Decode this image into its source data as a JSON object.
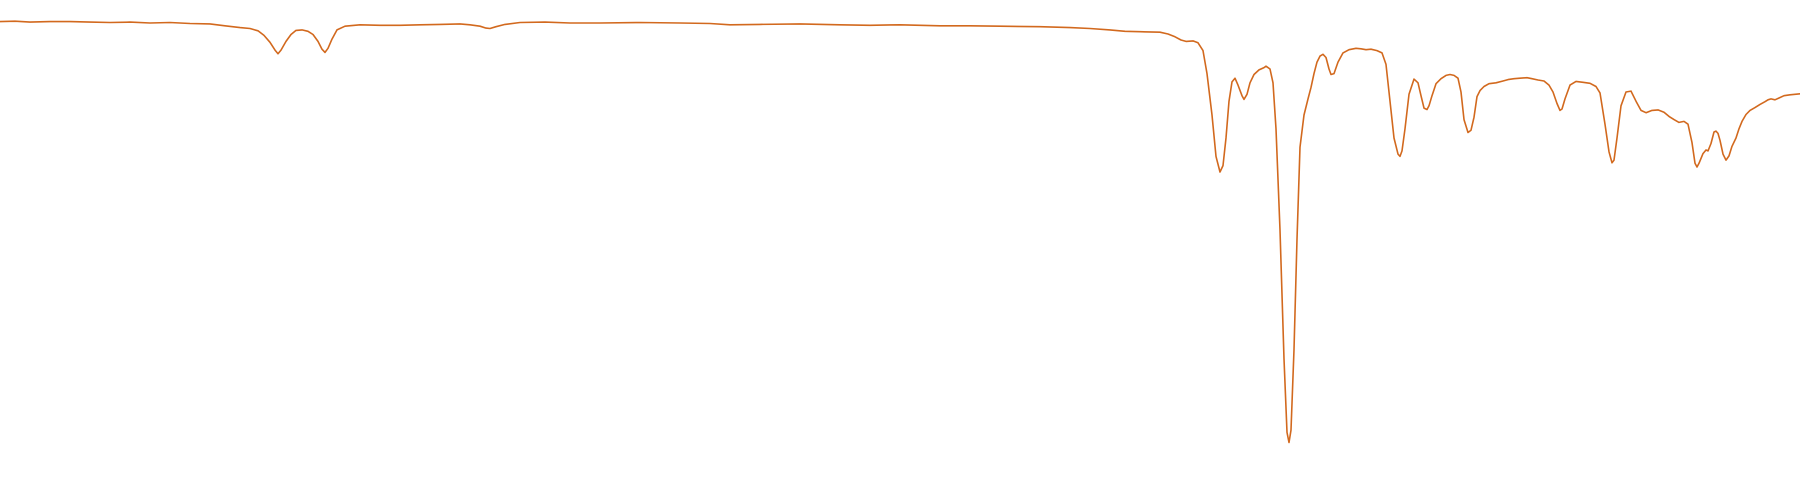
{
  "chart_data": {
    "type": "line",
    "title": "",
    "xlabel": "",
    "ylabel": "",
    "grid": false,
    "legend": "none",
    "xlim": [
      0,
      1800
    ],
    "ylim": [
      0,
      100
    ],
    "colors": {
      "line": "#d2691e",
      "background": "#ffffff"
    },
    "series": [
      {
        "values": [
          [
            0,
            95.3
          ],
          [
            15,
            95.4
          ],
          [
            30,
            95.2
          ],
          [
            50,
            95.3
          ],
          [
            70,
            95.3
          ],
          [
            90,
            95.2
          ],
          [
            110,
            95.1
          ],
          [
            130,
            95.2
          ],
          [
            150,
            95.0
          ],
          [
            170,
            95.1
          ],
          [
            190,
            94.9
          ],
          [
            210,
            94.8
          ],
          [
            225,
            94.4
          ],
          [
            240,
            94.0
          ],
          [
            250,
            93.8
          ],
          [
            258,
            93.3
          ],
          [
            264,
            92.3
          ],
          [
            270,
            90.8
          ],
          [
            275,
            89.1
          ],
          [
            278,
            88.3
          ],
          [
            281,
            89.1
          ],
          [
            286,
            91.0
          ],
          [
            291,
            92.5
          ],
          [
            296,
            93.4
          ],
          [
            302,
            93.5
          ],
          [
            308,
            93.2
          ],
          [
            313,
            92.5
          ],
          [
            318,
            91.0
          ],
          [
            322,
            89.3
          ],
          [
            325,
            88.6
          ],
          [
            328,
            89.5
          ],
          [
            332,
            91.5
          ],
          [
            337,
            93.5
          ],
          [
            345,
            94.3
          ],
          [
            360,
            94.6
          ],
          [
            380,
            94.5
          ],
          [
            400,
            94.5
          ],
          [
            420,
            94.6
          ],
          [
            440,
            94.7
          ],
          [
            460,
            94.8
          ],
          [
            470,
            94.6
          ],
          [
            480,
            94.3
          ],
          [
            486,
            93.9
          ],
          [
            490,
            93.8
          ],
          [
            496,
            94.2
          ],
          [
            505,
            94.7
          ],
          [
            520,
            95.1
          ],
          [
            545,
            95.2
          ],
          [
            570,
            95.0
          ],
          [
            600,
            95.0
          ],
          [
            640,
            95.1
          ],
          [
            680,
            95.0
          ],
          [
            710,
            94.9
          ],
          [
            730,
            94.6
          ],
          [
            760,
            94.7
          ],
          [
            800,
            94.8
          ],
          [
            840,
            94.6
          ],
          [
            870,
            94.5
          ],
          [
            900,
            94.6
          ],
          [
            940,
            94.4
          ],
          [
            970,
            94.4
          ],
          [
            1000,
            94.3
          ],
          [
            1040,
            94.2
          ],
          [
            1070,
            94.0
          ],
          [
            1090,
            93.8
          ],
          [
            1110,
            93.5
          ],
          [
            1125,
            93.2
          ],
          [
            1140,
            93.1
          ],
          [
            1160,
            93.0
          ],
          [
            1168,
            92.6
          ],
          [
            1175,
            92.0
          ],
          [
            1181,
            91.3
          ],
          [
            1186,
            91.0
          ],
          [
            1193,
            91.1
          ],
          [
            1198,
            90.7
          ],
          [
            1203,
            89.0
          ],
          [
            1207,
            84.0
          ],
          [
            1212,
            75.0
          ],
          [
            1216,
            66.0
          ],
          [
            1220,
            62.6
          ],
          [
            1223,
            64.0
          ],
          [
            1226,
            70.0
          ],
          [
            1229,
            78.0
          ],
          [
            1232,
            82.2
          ],
          [
            1235,
            83.0
          ],
          [
            1238,
            81.5
          ],
          [
            1242,
            79.2
          ],
          [
            1244,
            78.4
          ],
          [
            1247,
            79.5
          ],
          [
            1250,
            82.0
          ],
          [
            1254,
            83.8
          ],
          [
            1259,
            84.8
          ],
          [
            1264,
            85.3
          ],
          [
            1266,
            85.6
          ],
          [
            1270,
            85.0
          ],
          [
            1273,
            82.0
          ],
          [
            1276,
            72.0
          ],
          [
            1280,
            50.0
          ],
          [
            1284,
            22.0
          ],
          [
            1287,
            6.0
          ],
          [
            1289,
            3.8
          ],
          [
            1291,
            6.5
          ],
          [
            1294,
            24.0
          ],
          [
            1297,
            48.0
          ],
          [
            1300,
            68.0
          ],
          [
            1304,
            75.0
          ],
          [
            1308,
            78.5
          ],
          [
            1311,
            81.0
          ],
          [
            1314,
            84.0
          ],
          [
            1317,
            86.5
          ],
          [
            1320,
            87.8
          ],
          [
            1323,
            88.2
          ],
          [
            1326,
            87.5
          ],
          [
            1329,
            85.0
          ],
          [
            1331,
            83.8
          ],
          [
            1334,
            84.0
          ],
          [
            1338,
            86.5
          ],
          [
            1343,
            88.5
          ],
          [
            1349,
            89.2
          ],
          [
            1356,
            89.5
          ],
          [
            1361,
            89.4
          ],
          [
            1366,
            89.2
          ],
          [
            1371,
            89.3
          ],
          [
            1377,
            89.0
          ],
          [
            1382,
            88.5
          ],
          [
            1386,
            86.0
          ],
          [
            1390,
            78.0
          ],
          [
            1394,
            70.0
          ],
          [
            1398,
            66.5
          ],
          [
            1400,
            66.0
          ],
          [
            1402,
            67.2
          ],
          [
            1405,
            72.0
          ],
          [
            1409,
            79.5
          ],
          [
            1414,
            82.8
          ],
          [
            1418,
            82.0
          ],
          [
            1421,
            79.2
          ],
          [
            1424,
            76.5
          ],
          [
            1427,
            76.2
          ],
          [
            1429,
            77.0
          ],
          [
            1432,
            79.2
          ],
          [
            1436,
            81.8
          ],
          [
            1441,
            82.9
          ],
          [
            1446,
            83.6
          ],
          [
            1450,
            83.8
          ],
          [
            1454,
            83.6
          ],
          [
            1458,
            83.0
          ],
          [
            1461,
            80.0
          ],
          [
            1464,
            74.0
          ],
          [
            1468,
            71.2
          ],
          [
            1471,
            71.7
          ],
          [
            1474,
            74.5
          ],
          [
            1477,
            79.0
          ],
          [
            1480,
            80.3
          ],
          [
            1484,
            81.2
          ],
          [
            1489,
            81.8
          ],
          [
            1496,
            82.0
          ],
          [
            1503,
            82.4
          ],
          [
            1508,
            82.7
          ],
          [
            1514,
            82.9
          ],
          [
            1520,
            83.0
          ],
          [
            1527,
            83.1
          ],
          [
            1532,
            82.9
          ],
          [
            1538,
            82.6
          ],
          [
            1544,
            82.4
          ],
          [
            1549,
            81.5
          ],
          [
            1553,
            80.0
          ],
          [
            1557,
            77.5
          ],
          [
            1560,
            76.0
          ],
          [
            1562,
            76.3
          ],
          [
            1565,
            78.5
          ],
          [
            1570,
            81.5
          ],
          [
            1576,
            82.3
          ],
          [
            1583,
            82.1
          ],
          [
            1590,
            81.9
          ],
          [
            1596,
            81.2
          ],
          [
            1600,
            79.8
          ],
          [
            1605,
            73.0
          ],
          [
            1609,
            67.0
          ],
          [
            1612,
            64.6
          ],
          [
            1614,
            65.2
          ],
          [
            1617,
            70.0
          ],
          [
            1621,
            77.0
          ],
          [
            1626,
            80.0
          ],
          [
            1631,
            80.2
          ],
          [
            1636,
            78.0
          ],
          [
            1641,
            76.0
          ],
          [
            1646,
            75.5
          ],
          [
            1652,
            76.0
          ],
          [
            1658,
            76.1
          ],
          [
            1664,
            75.6
          ],
          [
            1669,
            74.7
          ],
          [
            1674,
            74.0
          ],
          [
            1679,
            73.4
          ],
          [
            1684,
            73.6
          ],
          [
            1688,
            73.0
          ],
          [
            1692,
            69.0
          ],
          [
            1695,
            64.5
          ],
          [
            1697,
            63.7
          ],
          [
            1699,
            64.5
          ],
          [
            1703,
            66.6
          ],
          [
            1706,
            67.4
          ],
          [
            1708,
            67.2
          ],
          [
            1711,
            68.8
          ],
          [
            1714,
            71.3
          ],
          [
            1716,
            71.5
          ],
          [
            1718,
            71.0
          ],
          [
            1720,
            69.5
          ],
          [
            1723,
            66.5
          ],
          [
            1726,
            65.2
          ],
          [
            1729,
            66.1
          ],
          [
            1732,
            68.2
          ],
          [
            1736,
            70.0
          ],
          [
            1739,
            72.0
          ],
          [
            1742,
            73.6
          ],
          [
            1746,
            75.1
          ],
          [
            1750,
            76.0
          ],
          [
            1755,
            76.6
          ],
          [
            1760,
            77.3
          ],
          [
            1765,
            77.9
          ],
          [
            1768,
            78.3
          ],
          [
            1771,
            78.5
          ],
          [
            1775,
            78.3
          ],
          [
            1779,
            78.7
          ],
          [
            1784,
            79.2
          ],
          [
            1790,
            79.4
          ],
          [
            1800,
            79.6
          ]
        ]
      }
    ]
  }
}
